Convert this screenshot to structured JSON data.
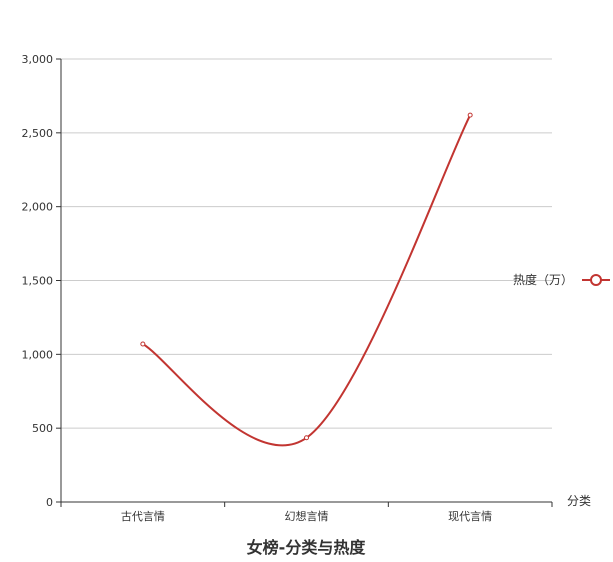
{
  "chart_data": {
    "type": "line",
    "title": "女榜-分类与热度",
    "xlabel": "分类",
    "ylabel": "",
    "categories": [
      "古代言情",
      "幻想言情",
      "现代言情"
    ],
    "series": [
      {
        "name": "热度（万）",
        "values": [
          1070,
          435,
          2620
        ],
        "color": "#c23531",
        "smooth": true
      }
    ],
    "ylim": [
      0,
      3000
    ],
    "yticks": [
      "0",
      "500",
      "1,000",
      "1,500",
      "2,000",
      "2,500",
      "3,000"
    ],
    "grid": true,
    "legend_position": "right"
  }
}
